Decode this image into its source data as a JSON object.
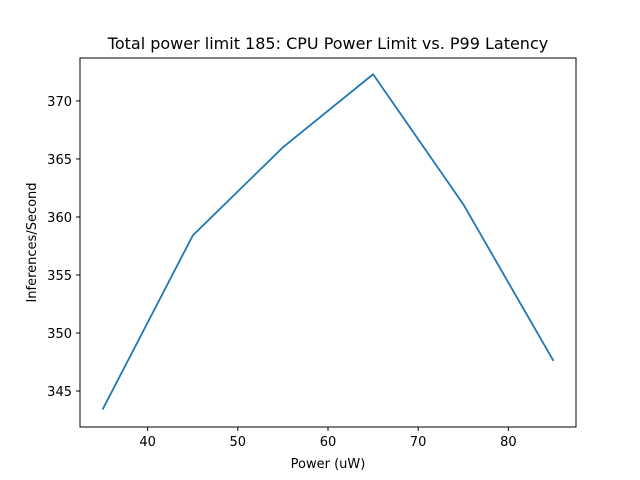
{
  "chart_data": {
    "type": "line",
    "title": "Total power limit 185: CPU Power Limit vs. P99 Latency",
    "xlabel": "Power (uW)",
    "ylabel": "Inferences/Second",
    "xlim": [
      32.5,
      87.5
    ],
    "ylim": [
      341.9,
      373.7
    ],
    "xticks": [
      40,
      50,
      60,
      70,
      80
    ],
    "yticks": [
      345,
      350,
      355,
      360,
      365,
      370
    ],
    "grid": false,
    "series": [
      {
        "color": "#1f77b4",
        "x": [
          35,
          45,
          55,
          65,
          75,
          85
        ],
        "y": [
          343.4,
          358.4,
          366.0,
          372.3,
          361.1,
          347.6
        ]
      }
    ]
  }
}
